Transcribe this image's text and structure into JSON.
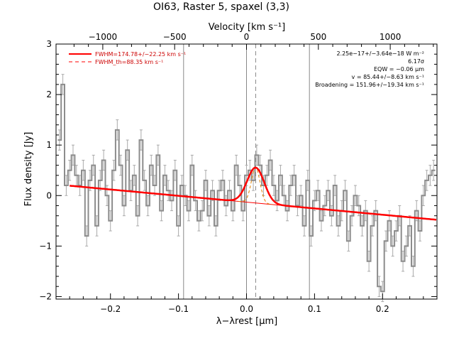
{
  "chart_data": {
    "type": "line",
    "title": "OI63, Raster 5, spaxel (3,3)",
    "xlabel": "λ−λrest [μm]",
    "ylabel": "Flux density [Jy]",
    "top_axis_label": "Velocity [km s⁻¹]",
    "xlim": [
      -0.28,
      0.28
    ],
    "ylim": [
      -2.05,
      3.0
    ],
    "x_ticks": [
      -0.2,
      -0.1,
      0.0,
      0.1,
      0.2
    ],
    "x_tick_labels": [
      "−0.2",
      "−0.1",
      "0.0",
      "0.1",
      "0.2"
    ],
    "y_ticks": [
      -2,
      -1,
      0,
      1,
      2,
      3
    ],
    "y_tick_labels": [
      "−2",
      "−1",
      "0",
      "1",
      "2",
      "3"
    ],
    "top_ticks_kms": [
      -1000,
      -500,
      0,
      500,
      1000
    ],
    "top_tick_labels": [
      "−1000",
      "−500",
      "0",
      "500",
      "1000"
    ],
    "velocity_per_um": 4733,
    "vertical_lines": [
      -0.0925,
      0.0,
      0.0925
    ],
    "center_dashed_line": 0.0135,
    "legend": [
      {
        "label": "FWHM=174.78+/−22.25 km s⁻¹",
        "color": "#ff0000",
        "style": "solid"
      },
      {
        "label": "FWHM_th=88.35 km s⁻¹",
        "color": "#ff0000",
        "style": "dashed"
      }
    ],
    "annotations": [
      "2.25e−17+/−3.64e−18 W m⁻²",
      "6.17σ",
      "EQW = −0.06 μm",
      "v = 85.44+/−8.63 km s⁻¹",
      "Broadening = 151.96+/−19.34 km s⁻¹"
    ],
    "continuum": {
      "slope": -1.25,
      "intercept": -0.13
    },
    "gaussian": {
      "center": 0.0135,
      "amplitude": 0.7,
      "sigma": 0.0125
    },
    "gaussian_th": {
      "center": 0.0135,
      "amplitude": 0.7,
      "sigma": 0.0063
    },
    "series": [
      {
        "x": [
          -0.275,
          -0.27,
          -0.265,
          -0.26,
          -0.255,
          -0.25,
          -0.245,
          -0.24,
          -0.235,
          -0.23,
          -0.225,
          -0.22,
          -0.215,
          -0.21,
          -0.205,
          -0.2,
          -0.195,
          -0.19,
          -0.185,
          -0.18,
          -0.175,
          -0.17,
          -0.165,
          -0.16,
          -0.155,
          -0.15,
          -0.145,
          -0.14,
          -0.135,
          -0.13,
          -0.125,
          -0.12,
          -0.115,
          -0.11,
          -0.105,
          -0.1,
          -0.095,
          -0.09,
          -0.085,
          -0.08,
          -0.075,
          -0.07,
          -0.065,
          -0.06,
          -0.055,
          -0.05,
          -0.045,
          -0.04,
          -0.035,
          -0.03,
          -0.025,
          -0.02,
          -0.015,
          -0.01,
          -0.005,
          0.0,
          0.005,
          0.01,
          0.015,
          0.02,
          0.025,
          0.03,
          0.035,
          0.04,
          0.045,
          0.05,
          0.055,
          0.06,
          0.065,
          0.07,
          0.075,
          0.08,
          0.085,
          0.09,
          0.095,
          0.1,
          0.105,
          0.11,
          0.115,
          0.12,
          0.125,
          0.13,
          0.135,
          0.14,
          0.145,
          0.15,
          0.155,
          0.16,
          0.165,
          0.17,
          0.175,
          0.18,
          0.185,
          0.19,
          0.195,
          0.2,
          0.205,
          0.21,
          0.215,
          0.22,
          0.225,
          0.23,
          0.235,
          0.24,
          0.245,
          0.25,
          0.255,
          0.26,
          0.265,
          0.27,
          0.275
        ],
        "y": [
          1.1,
          2.2,
          0.2,
          0.5,
          0.8,
          0.4,
          0.2,
          0.5,
          -0.8,
          0.3,
          0.6,
          -0.6,
          0.3,
          0.7,
          0.0,
          -0.5,
          0.5,
          1.3,
          0.6,
          -0.2,
          0.9,
          0.1,
          0.4,
          -0.4,
          1.1,
          0.3,
          -0.2,
          0.6,
          0.2,
          0.8,
          -0.3,
          0.4,
          0.1,
          -0.1,
          0.5,
          -0.6,
          0.2,
          0.0,
          -0.3,
          0.6,
          -0.1,
          -0.5,
          -0.3,
          0.3,
          -0.4,
          0.1,
          -0.6,
          0.1,
          0.3,
          -0.2,
          0.1,
          -0.3,
          0.6,
          0.2,
          -0.3,
          0.4,
          0.5,
          0.3,
          0.8,
          0.6,
          0.2,
          0.4,
          0.7,
          0.2,
          -0.1,
          0.4,
          0.0,
          -0.3,
          0.2,
          0.4,
          -0.2,
          0.0,
          -0.6,
          0.3,
          -0.8,
          -0.1,
          0.1,
          -0.5,
          -0.2,
          0.1,
          -0.4,
          0.2,
          -0.6,
          -0.3,
          0.1,
          -0.9,
          -0.4,
          0.0,
          -0.2,
          -0.6,
          -0.3,
          -1.3,
          -0.6,
          -0.3,
          -1.8,
          -1.9,
          -0.9,
          -0.5,
          -1.0,
          -0.7,
          -0.4,
          -1.3,
          -1.0,
          -0.6,
          -1.4,
          -0.3,
          -0.7,
          0.0,
          0.3,
          0.4,
          0.5
        ],
        "yerr": 0.2
      }
    ]
  }
}
